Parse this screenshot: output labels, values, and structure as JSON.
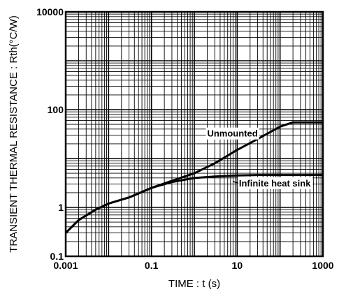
{
  "chart_data": {
    "type": "line",
    "title": "",
    "xlabel": "TIME : t (s)",
    "ylabel": "TRANSIENT THERMAL RESISTANCE : Rth(°C/W)",
    "x_scale": "log",
    "y_scale": "log",
    "xlim": [
      0.001,
      1000
    ],
    "ylim": [
      0.1,
      10000
    ],
    "grid": true,
    "x_tick_labels": [
      "0.001",
      "0.1",
      "10",
      "1000"
    ],
    "y_tick_labels": [
      "0.1",
      "1",
      "100",
      "10000"
    ],
    "series": [
      {
        "name": "Unmounted",
        "x": [
          0.001,
          0.002,
          0.005,
          0.01,
          0.03,
          0.1,
          0.3,
          1,
          3,
          10,
          30,
          100,
          200,
          1000
        ],
        "y": [
          0.3,
          0.55,
          0.9,
          1.2,
          1.6,
          2.5,
          3.5,
          5,
          8,
          15,
          25,
          45,
          55,
          55
        ]
      },
      {
        "name": "Infinite heat sink",
        "x": [
          0.001,
          0.002,
          0.005,
          0.01,
          0.03,
          0.1,
          0.3,
          1,
          3,
          10,
          30,
          100,
          1000
        ],
        "y": [
          0.3,
          0.55,
          0.9,
          1.2,
          1.6,
          2.5,
          3.3,
          4.0,
          4.3,
          4.5,
          4.6,
          4.6,
          4.6
        ]
      }
    ],
    "annotations": [
      "Unmounted",
      "Infinite heat sink"
    ]
  }
}
